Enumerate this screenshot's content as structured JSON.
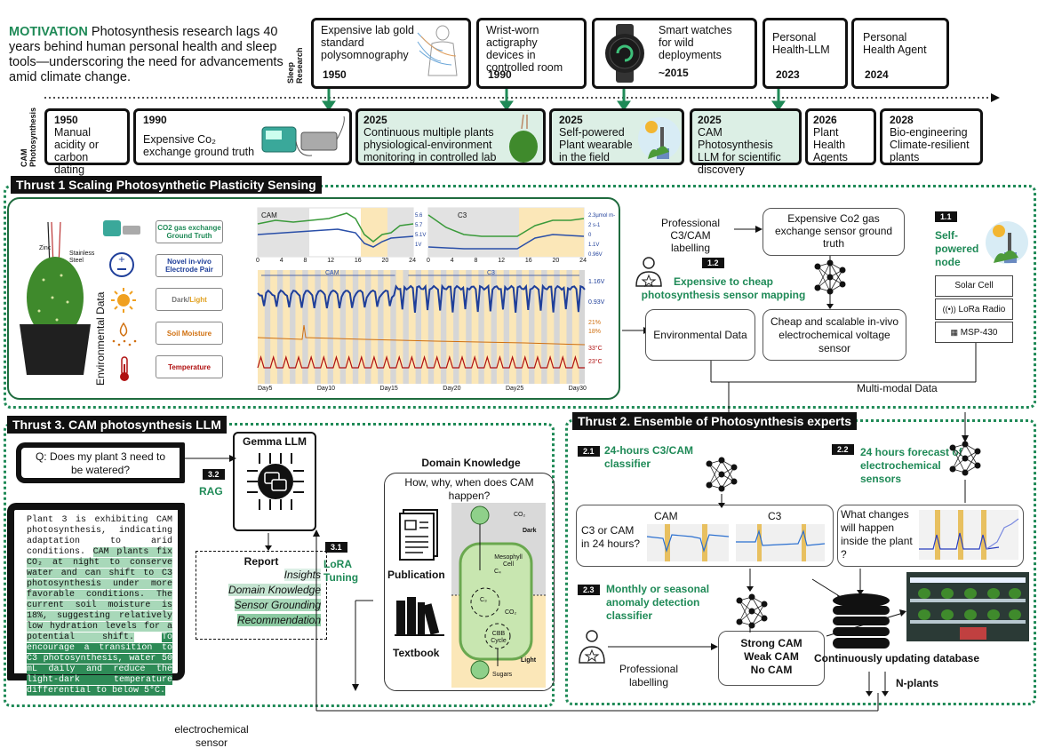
{
  "motivation": {
    "label": "MOTIVATION",
    "text": "Photosynthesis research lags 40 years behind human personal health and sleep tools—underscoring the need for advancements amid climate change."
  },
  "rows": {
    "sleep": "Sleep Research",
    "cam": "CAM Photosynthesis"
  },
  "sleep_timeline": [
    {
      "year": "1950",
      "text": "Expensive lab gold standard polysomnography"
    },
    {
      "year": "1990",
      "text": "Wrist-worn actigraphy devices in controlled room"
    },
    {
      "year": "~2015",
      "text": "Smart watches for wild deployments"
    },
    {
      "year": "2023",
      "text": "Personal Health-LLM"
    },
    {
      "year": "2024",
      "text": "Personal Health Agent"
    }
  ],
  "cam_timeline": [
    {
      "year": "1950",
      "text": "Manual acidity or carbon dating"
    },
    {
      "year": "1990",
      "text": "Expensive Co₂ exchange ground truth"
    },
    {
      "year": "2025",
      "text": "Continuous  multiple plants physiological-environment monitoring in controlled lab"
    },
    {
      "year": "2025",
      "text": "Self-powered Plant wearable in the field"
    },
    {
      "year": "2025",
      "text": "CAM Photosynthesis LLM  for scientific discovery"
    },
    {
      "year": "2026",
      "text": "Plant Health Agents"
    },
    {
      "year": "2028",
      "text": "Bio-engineering Climate-resilient plants"
    }
  ],
  "thrust1": {
    "title": "Thrust 1 Scaling Photosynthetic Plasticity  Sensing",
    "plant_labels": {
      "zinc": "Zinc",
      "steel": "Stainless Steel"
    },
    "env_label": "Environmental Data",
    "legend": [
      {
        "text": "CO2 gas exchange Ground Truth",
        "color": "#1f8a57"
      },
      {
        "text": "Novel in-vivo Electrode Pair",
        "color": "#1f3f9a"
      },
      {
        "text_a": "Dark/",
        "text_b": "Light",
        "color": "#666666",
        "color_b": "#e0a020"
      },
      {
        "text": "Soil Moisture",
        "color": "#d07010"
      },
      {
        "text": "Temperature",
        "color": "#b01010"
      }
    ],
    "small_charts": [
      {
        "label": "CAM",
        "ticks": [
          "0",
          "4",
          "8",
          "12",
          "16",
          "20",
          "24"
        ],
        "right": [
          "5.6",
          "5.7",
          "5.1V",
          "1V"
        ]
      },
      {
        "label": "C3",
        "ticks": [
          "0",
          "4",
          "8",
          "12",
          "16",
          "20",
          "24"
        ],
        "right": [
          "2.3µmol m-2 s-1",
          "0",
          "1.1V",
          "0.96V"
        ]
      }
    ],
    "big_chart": {
      "cam_label": "CAM",
      "c3_label": "C3",
      "right": [
        "1.16V",
        "0.93V",
        "21%",
        "18%",
        "33°C",
        "23°C"
      ],
      "days": [
        "Day5",
        "Day10",
        "Day15",
        "Day20",
        "Day25",
        "Day30"
      ]
    },
    "professional": "Professional C3/CAM labelling",
    "expensive": "Expensive Co2 gas exchange sensor ground truth",
    "n12": "1.2",
    "mapping": "Expensive to cheap photosynthesis sensor mapping",
    "env_data": "Environmental Data",
    "cheap": "Cheap and scalable in-vivo electrochemical voltage sensor",
    "n11": "1.1",
    "self_powered": "Self-powered node",
    "node_parts": [
      "Solar Cell",
      "LoRa Radio",
      "MSP-430"
    ],
    "multimodal": "Multi-modal Data"
  },
  "thrust3": {
    "title": "Thrust 3. CAM photosynthesis LLM",
    "question": "Q: Does my plant 3 need to be watered?",
    "gemma": "Gemma LLM",
    "n32": "3.2",
    "rag": "RAG",
    "n31": "3.1",
    "lora": "LoRA Tuning",
    "answer_plain": "Plant 3 is exhibiting CAM photosynthesis, indicating adaptation to arid conditions.",
    "answer_hl1": "CAM plants fix CO₂ at night to conserve water and can shift to C3 photosynthesis under more favorable conditions. The current soil moisture is 18%, suggesting relatively low hydration levels for a potential shift.",
    "answer_hl2": "To encourage a transition to C3 photosynthesis, water 50 mL daily and reduce the light-dark temperature differential to below 5°C.",
    "report": "Report",
    "report_items": [
      "Insights",
      "Domain Knowledge",
      "Sensor Grounding",
      "Recommendation"
    ],
    "domain": "Domain Knowledge",
    "domain_q": "How, why, when does CAM happen?",
    "publication": "Publication",
    "textbook": "Textbook",
    "diagram": {
      "co2": "CO₂",
      "dark": "Dark",
      "mesophyll": "Mesophyll Cell",
      "c4": "C₄",
      "c3": "C₃",
      "co2b": "CO₂",
      "cbb": "CBB Cycle",
      "light": "Light",
      "sugars": "Sugars"
    },
    "sensor": "electrochemical sensor"
  },
  "thrust2": {
    "title": "Thrust 2. Ensemble of Photosynthesis experts",
    "n21": "2.1",
    "classifier": "24-hours  C3/CAM classifier",
    "n22": "2.2",
    "forecast": "24 hours forecast of electrochemical sensors",
    "c3cam_q": "C3 or CAM in 24 hours?",
    "cam": "CAM",
    "c3": "C3",
    "what_changes": "What changes will happen inside the plant ?",
    "n23": "2.3",
    "anomaly": "Monthly or seasonal anomaly detection classifier",
    "classes": [
      "Strong CAM",
      "Weak CAM",
      "No CAM"
    ],
    "prof_label": "Professional labelling",
    "database": "Continuously updating database",
    "nplants": "N-plants"
  },
  "colors": {
    "accent": "#1f8a57",
    "blue": "#1f3f9a",
    "orange": "#d07010",
    "red": "#b01010",
    "dark_band": "#d6d6d6",
    "light_band": "#fbe7b8"
  }
}
